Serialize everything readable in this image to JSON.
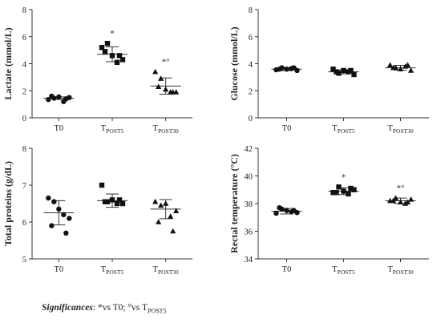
{
  "chart_data": [
    {
      "type": "scatter",
      "ylabel": "Lactate (mmol/L)",
      "categories": [
        {
          "main": "T0",
          "sub": ""
        },
        {
          "main": "T",
          "sub": "POST5"
        },
        {
          "main": "T",
          "sub": "POST30"
        }
      ],
      "ylim": [
        0,
        8
      ],
      "yticks": [
        "0",
        "2",
        "4",
        "6",
        "8"
      ],
      "groups": [
        {
          "marker": "circle",
          "points": [
            1.35,
            1.45,
            1.55,
            1.2,
            1.5,
            1.6,
            1.4
          ],
          "mean": 1.45,
          "sd": 0.1,
          "annotation": ""
        },
        {
          "marker": "square",
          "points": [
            5.2,
            5.5,
            4.6,
            4.1,
            4.3,
            4.9,
            4.6
          ],
          "mean": 4.7,
          "sd": 0.55,
          "annotation": "*"
        },
        {
          "marker": "triangle",
          "points": [
            3.4,
            2.9,
            2.1,
            1.9,
            1.9,
            2.3,
            1.9
          ],
          "mean": 2.35,
          "sd": 0.6,
          "annotation": "*°"
        }
      ]
    },
    {
      "type": "scatter",
      "ylabel": "Glucose (mmol/L)",
      "categories": [
        {
          "main": "T0",
          "sub": ""
        },
        {
          "main": "T",
          "sub": "POST5"
        },
        {
          "main": "T",
          "sub": "POST30"
        }
      ],
      "ylim": [
        0,
        8
      ],
      "yticks": [
        "0",
        "2",
        "4",
        "6",
        "8"
      ],
      "groups": [
        {
          "marker": "circle",
          "points": [
            3.55,
            3.7,
            3.6,
            3.65,
            3.5,
            3.6,
            3.7
          ],
          "mean": 3.6,
          "sd": 0.12,
          "annotation": ""
        },
        {
          "marker": "square",
          "points": [
            3.6,
            3.3,
            3.5,
            3.4,
            3.2,
            3.4,
            3.5
          ],
          "mean": 3.4,
          "sd": 0.15,
          "annotation": ""
        },
        {
          "marker": "triangle",
          "points": [
            3.9,
            3.7,
            3.6,
            3.8,
            3.5,
            3.7,
            3.9
          ],
          "mean": 3.7,
          "sd": 0.18,
          "annotation": ""
        }
      ]
    },
    {
      "type": "scatter",
      "ylabel": "Total proteins (g/dL)",
      "categories": [
        {
          "main": "T0",
          "sub": ""
        },
        {
          "main": "T",
          "sub": "POST5"
        },
        {
          "main": "T",
          "sub": "POST30"
        }
      ],
      "ylim": [
        5,
        8
      ],
      "yticks": [
        "5",
        "6",
        "7",
        "8"
      ],
      "groups": [
        {
          "marker": "circle",
          "points": [
            6.65,
            6.55,
            6.35,
            6.2,
            6.1,
            5.9,
            5.7
          ],
          "mean": 6.25,
          "sd": 0.33,
          "annotation": ""
        },
        {
          "marker": "square",
          "points": [
            7.0,
            6.55,
            6.6,
            6.5,
            6.5,
            6.55,
            6.6
          ],
          "mean": 6.58,
          "sd": 0.18,
          "annotation": ""
        },
        {
          "marker": "triangle",
          "points": [
            6.55,
            6.45,
            6.5,
            6.15,
            6.3,
            6.0,
            5.75
          ],
          "mean": 6.35,
          "sd": 0.26,
          "annotation": ""
        }
      ]
    },
    {
      "type": "scatter",
      "ylabel": "Rectal temperature (°C)",
      "categories": [
        {
          "main": "T0",
          "sub": ""
        },
        {
          "main": "T",
          "sub": "POST5"
        },
        {
          "main": "T",
          "sub": "POST30"
        }
      ],
      "ylim": [
        34,
        42
      ],
      "yticks": [
        "34",
        "36",
        "38",
        "40",
        "42"
      ],
      "groups": [
        {
          "marker": "circle",
          "points": [
            37.3,
            37.6,
            37.5,
            37.4,
            37.35,
            37.7,
            37.5
          ],
          "mean": 37.45,
          "sd": 0.2,
          "annotation": ""
        },
        {
          "marker": "square",
          "points": [
            38.8,
            39.2,
            38.9,
            38.7,
            39.0,
            38.8,
            39.1
          ],
          "mean": 38.9,
          "sd": 0.25,
          "annotation": "*"
        },
        {
          "marker": "triangle",
          "points": [
            38.2,
            38.4,
            38.1,
            38.0,
            38.3,
            38.2,
            38.1
          ],
          "mean": 38.2,
          "sd": 0.2,
          "annotation": "*°"
        }
      ]
    }
  ],
  "footnote": {
    "label": "Significances",
    "text": ": *vs T0; °vs T",
    "sub": "POST5"
  }
}
